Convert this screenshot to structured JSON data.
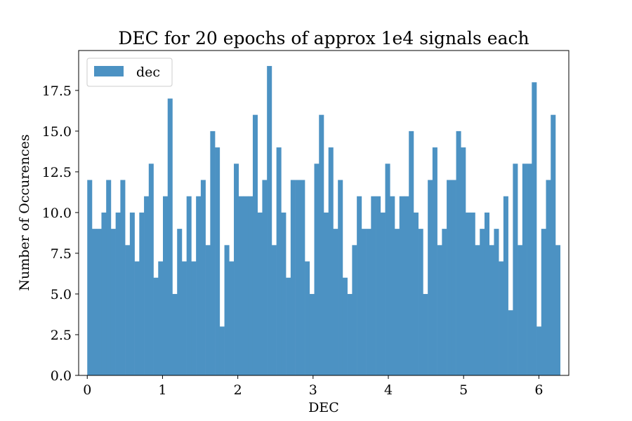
{
  "chart_data": {
    "type": "bar",
    "title": "DEC for 20 epochs of approx 1e4 signals each",
    "xlabel": "DEC",
    "ylabel": "Number of Occurences",
    "xlim": [
      -0.1143,
      6.3976
    ],
    "ylim": [
      0,
      19.95
    ],
    "bin_start": 0.0,
    "bin_width": 0.06283,
    "xticks": [
      0,
      1,
      2,
      3,
      4,
      5,
      6
    ],
    "xtick_labels": [
      "0",
      "1",
      "2",
      "3",
      "4",
      "5",
      "6"
    ],
    "yticks": [
      0,
      2.5,
      5,
      7.5,
      10,
      12.5,
      15,
      17.5
    ],
    "ytick_labels": [
      "0.0",
      "2.5",
      "5.0",
      "7.5",
      "10.0",
      "12.5",
      "15.0",
      "17.5"
    ],
    "grid": false,
    "legend_position": "top-left",
    "series": [
      {
        "name": "dec",
        "color": "#4c92c3",
        "values": [
          12,
          9,
          9,
          10,
          12,
          9,
          10,
          12,
          8,
          10,
          7,
          10,
          11,
          13,
          6,
          7,
          11,
          17,
          5,
          9,
          7,
          11,
          7,
          11,
          12,
          8,
          15,
          14,
          3,
          8,
          7,
          13,
          11,
          11,
          11,
          16,
          10,
          12,
          19,
          8,
          14,
          10,
          6,
          12,
          12,
          12,
          7,
          5,
          13,
          16,
          10,
          14,
          9,
          12,
          6,
          5,
          8,
          11,
          9,
          9,
          11,
          11,
          10,
          13,
          11,
          9,
          11,
          11,
          15,
          10,
          9,
          5,
          12,
          14,
          8,
          9,
          12,
          12,
          15,
          14,
          10,
          10,
          8,
          9,
          10,
          8,
          9,
          7,
          11,
          4,
          13,
          8,
          13,
          13,
          18,
          3,
          9,
          12,
          16,
          8
        ]
      }
    ]
  }
}
